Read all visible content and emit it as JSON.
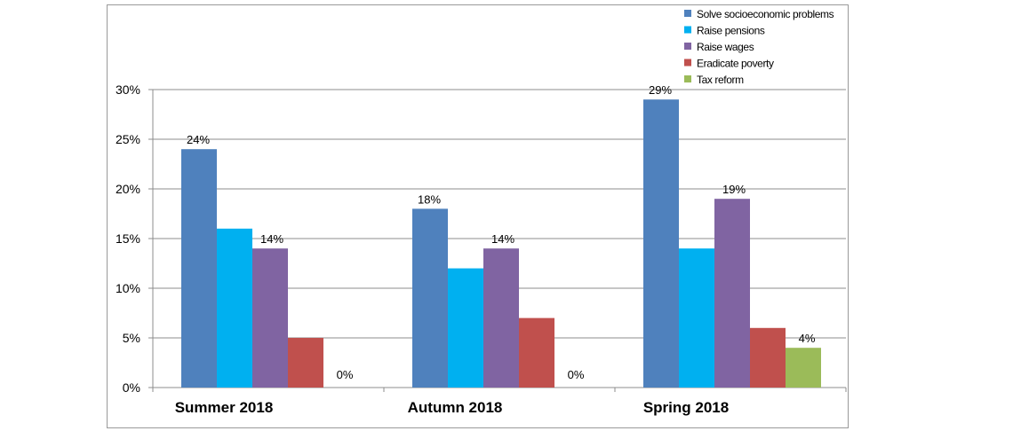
{
  "chart_data": {
    "type": "bar",
    "categories": [
      "Summer 2018",
      "Autumn 2018",
      "Spring 2018"
    ],
    "series": [
      {
        "name": "Solve socioeconomic problems",
        "color": "#4f81bd",
        "values": [
          24,
          18,
          29
        ]
      },
      {
        "name": "Raise pensions",
        "color": "#00b0f0",
        "values": [
          16,
          12,
          14
        ]
      },
      {
        "name": "Raise wages",
        "color": "#8064a2",
        "values": [
          14,
          14,
          19
        ]
      },
      {
        "name": "Eradicate poverty",
        "color": "#c0504d",
        "values": [
          5,
          7,
          6
        ]
      },
      {
        "name": "Tax reform",
        "color": "#9bbb59",
        "values": [
          0,
          0,
          4
        ]
      }
    ],
    "data_labels": [
      {
        "series": 0,
        "category": 0,
        "text": "24%"
      },
      {
        "series": 2,
        "category": 0,
        "text": "14%"
      },
      {
        "series": 4,
        "category": 0,
        "text": "0%"
      },
      {
        "series": 0,
        "category": 1,
        "text": "18%"
      },
      {
        "series": 2,
        "category": 1,
        "text": "14%"
      },
      {
        "series": 4,
        "category": 1,
        "text": "0%"
      },
      {
        "series": 0,
        "category": 2,
        "text": "29%"
      },
      {
        "series": 2,
        "category": 2,
        "text": "19%"
      },
      {
        "series": 4,
        "category": 2,
        "text": "4%"
      }
    ],
    "y_ticks": [
      "0%",
      "5%",
      "10%",
      "15%",
      "20%",
      "25%",
      "30%"
    ],
    "ylim": [
      0,
      30
    ],
    "unit": "%",
    "grid": true,
    "legend_position": "top-right",
    "title": "",
    "xlabel": "",
    "ylabel": ""
  }
}
